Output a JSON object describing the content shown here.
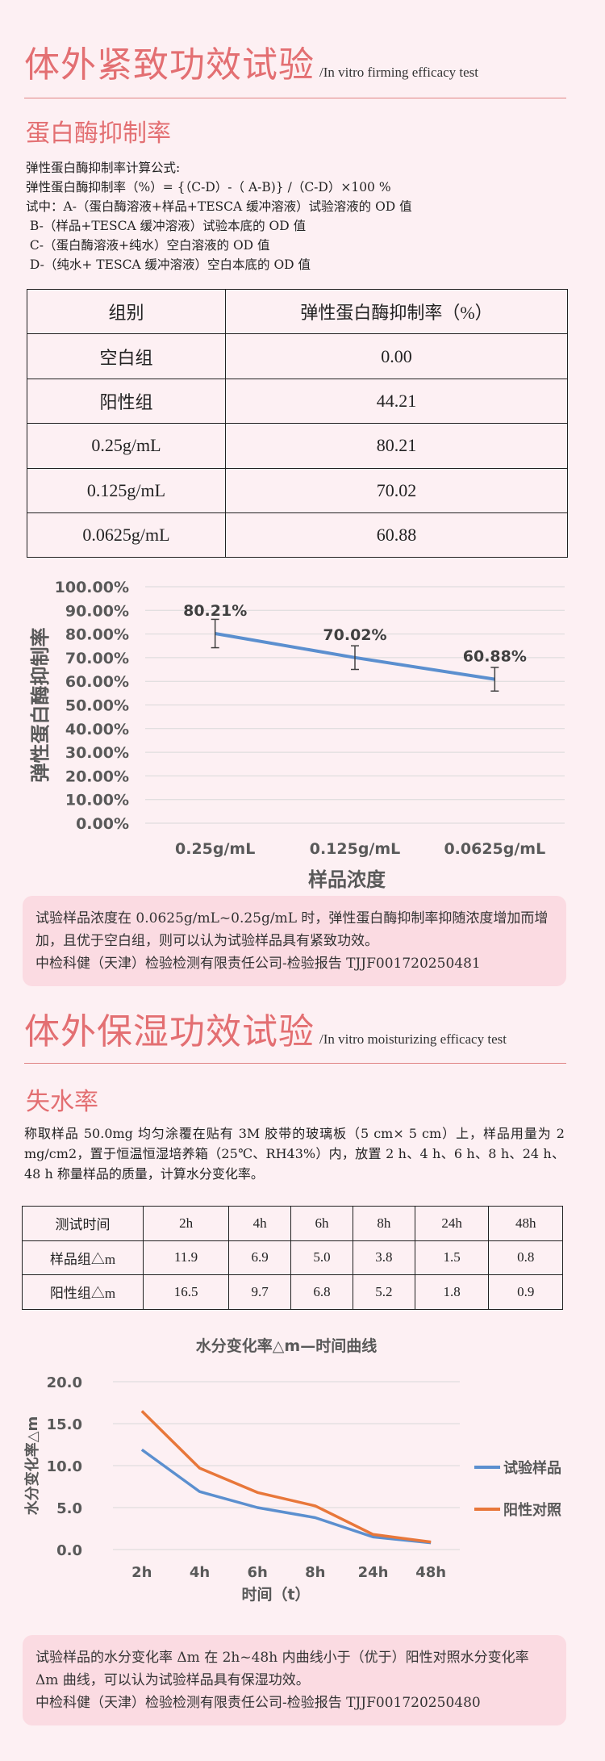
{
  "firming": {
    "title": "体外紧致功效试验",
    "subtitle": "/In vitro firming efficacy test",
    "sub_title": "蛋白酶抑制率",
    "formula_lines": [
      "弹性蛋白酶抑制率计算公式:",
      "弹性蛋白酶抑制率（%）= {（C-D）-（ A-B)} /（C-D）×100 %",
      "试中：A-（蛋白酶溶液+样品+TESCA 缓冲溶液）试验溶液的 OD 值",
      " B-（样品+TESCA 缓冲溶液）试验本底的 OD 值",
      " C-（蛋白酶溶液+纯水）空白溶液的 OD 值",
      " D-（纯水+ TESCA 缓冲溶液）空白本底的 OD 值"
    ],
    "table": {
      "headers": [
        "组别",
        "弹性蛋白酶抑制率（%）"
      ],
      "rows": [
        [
          "空白组",
          "0.00"
        ],
        [
          "阳性组",
          "44.21"
        ],
        [
          "0.25g/mL",
          "80.21"
        ],
        [
          "0.125g/mL",
          "70.02"
        ],
        [
          "0.0625g/mL",
          "60.88"
        ]
      ]
    },
    "note_lines": [
      "试验样品浓度在 0.0625g/mL~0.25g/mL 时，弹性蛋白酶抑制率抑随浓度增加而增",
      "加，且优于空白组，则可以认为试验样品具有紧致功效。",
      "中检科健（天津）检验检测有限责任公司-检验报告 TJJF001720250481"
    ]
  },
  "moisture": {
    "title": "体外保湿功效试验",
    "subtitle": "/In vitro moisturizing efficacy test",
    "sub_title": "失水率",
    "para": "称取样品 50.0mg 均匀涂覆在贴有 3M 胶带的玻璃板（5 cm× 5 cm）上，样品用量为 2 mg/cm2，置于恒温恒湿培养箱（25℃、RH43%）内，放置 2 h、4 h、6 h、8 h、24 h、48 h 称量样品的质量，计算水分变化率。",
    "table": {
      "headers": [
        "测试时间",
        "2h",
        "4h",
        "6h",
        "8h",
        "24h",
        "48h"
      ],
      "rows": [
        [
          "样品组△m",
          "11.9",
          "6.9",
          "5.0",
          "3.8",
          "1.5",
          "0.8"
        ],
        [
          "阳性组△m",
          "16.5",
          "9.7",
          "6.8",
          "5.2",
          "1.8",
          "0.9"
        ]
      ]
    },
    "note_lines": [
      "试验样品的水分变化率 Δm 在 2h~48h 内曲线小于（优于）阳性对照水分变化率",
      "Δm 曲线，可以认为试验样品具有保湿功效。",
      "中检科健（天津）检验检测有限责任公司-检验报告 TJJF001720250480"
    ]
  },
  "chart_data": [
    {
      "type": "line",
      "categories": [
        "0.25g/mL",
        "0.125g/mL",
        "0.0625g/mL"
      ],
      "series": [
        {
          "values": [
            80.21,
            70.02,
            60.88
          ],
          "color": "#5b8fcf"
        }
      ],
      "data_labels": [
        "80.21%",
        "70.02%",
        "60.88%"
      ],
      "error_bars": [
        6,
        5,
        5
      ],
      "yticks": [
        "0.00%",
        "10.00%",
        "20.00%",
        "30.00%",
        "40.00%",
        "50.00%",
        "60.00%",
        "70.00%",
        "80.00%",
        "90.00%",
        "100.00%"
      ],
      "ylim": [
        0,
        100
      ],
      "xlabel": "样品浓度",
      "ylabel": "弹性蛋白酶抑制率",
      "grid": true
    },
    {
      "type": "line",
      "title": "水分变化率△m—时间曲线",
      "categories": [
        "2h",
        "4h",
        "6h",
        "8h",
        "24h",
        "48h"
      ],
      "series": [
        {
          "name": "试验样品",
          "values": [
            11.9,
            6.9,
            5.0,
            3.8,
            1.5,
            0.8
          ],
          "color": "#5b8fcf"
        },
        {
          "name": "阳性对照",
          "values": [
            16.5,
            9.7,
            6.8,
            5.2,
            1.8,
            0.9
          ],
          "color": "#e8773a"
        }
      ],
      "yticks": [
        "0.0",
        "5.0",
        "10.0",
        "15.0",
        "20.0"
      ],
      "ylim": [
        0,
        20
      ],
      "xlabel": "时间（t）",
      "ylabel": "水分变化率△m",
      "legend": "right",
      "grid": true
    }
  ]
}
